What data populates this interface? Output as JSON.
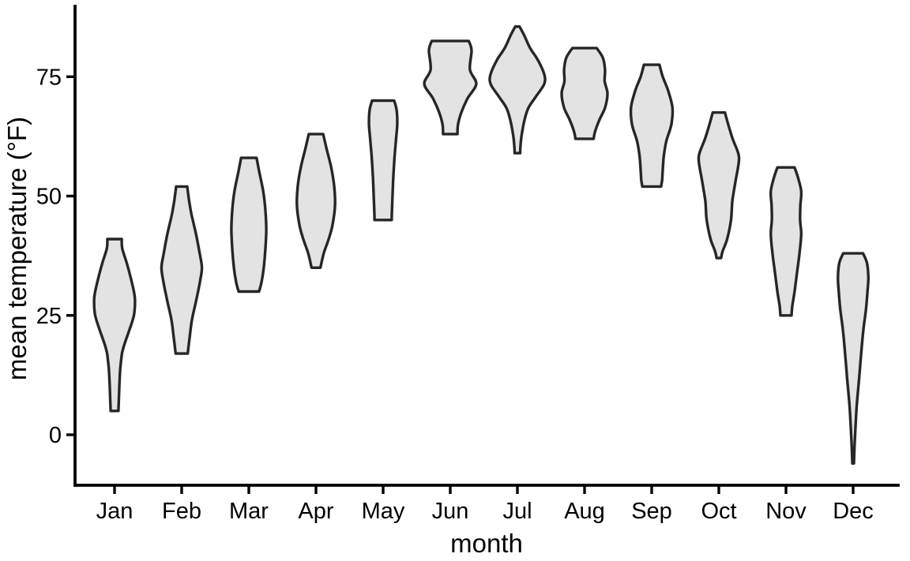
{
  "chart_data": {
    "type": "violin",
    "title": "",
    "xlabel": "month",
    "ylabel": "mean temperature (°F)",
    "categories": [
      "Jan",
      "Feb",
      "Mar",
      "Apr",
      "May",
      "Jun",
      "Jul",
      "Aug",
      "Sep",
      "Oct",
      "Nov",
      "Dec"
    ],
    "y_ticks": [
      0,
      25,
      50,
      75
    ],
    "ylim": [
      -10,
      88
    ],
    "grid": false,
    "legend": "none",
    "profile_format": "[temperature_F, relative_density_0_to_1]",
    "series": [
      {
        "month": "Jan",
        "min": 5,
        "max": 41,
        "profile": [
          [
            41,
            0.26
          ],
          [
            39,
            0.28
          ],
          [
            36,
            0.44
          ],
          [
            33,
            0.58
          ],
          [
            30,
            0.7
          ],
          [
            28,
            0.74
          ],
          [
            25,
            0.7
          ],
          [
            22,
            0.54
          ],
          [
            19,
            0.36
          ],
          [
            17,
            0.27
          ],
          [
            14,
            0.21
          ],
          [
            11,
            0.18
          ],
          [
            8,
            0.16
          ],
          [
            5,
            0.14
          ]
        ]
      },
      {
        "month": "Feb",
        "min": 17,
        "max": 52,
        "profile": [
          [
            52,
            0.2
          ],
          [
            49,
            0.27
          ],
          [
            46,
            0.36
          ],
          [
            42,
            0.52
          ],
          [
            38,
            0.65
          ],
          [
            35,
            0.73
          ],
          [
            32,
            0.66
          ],
          [
            28,
            0.52
          ],
          [
            24,
            0.37
          ],
          [
            20,
            0.28
          ],
          [
            17,
            0.22
          ]
        ]
      },
      {
        "month": "Mar",
        "min": 30,
        "max": 58,
        "profile": [
          [
            58,
            0.28
          ],
          [
            55,
            0.38
          ],
          [
            51,
            0.52
          ],
          [
            47,
            0.6
          ],
          [
            43,
            0.63
          ],
          [
            39,
            0.6
          ],
          [
            35,
            0.54
          ],
          [
            32,
            0.46
          ],
          [
            30,
            0.37
          ]
        ]
      },
      {
        "month": "Apr",
        "min": 35,
        "max": 63,
        "profile": [
          [
            63,
            0.26
          ],
          [
            60,
            0.38
          ],
          [
            56,
            0.55
          ],
          [
            52,
            0.66
          ],
          [
            48,
            0.69
          ],
          [
            44,
            0.6
          ],
          [
            41,
            0.46
          ],
          [
            38,
            0.28
          ],
          [
            35,
            0.16
          ]
        ]
      },
      {
        "month": "May",
        "min": 45,
        "max": 70,
        "profile": [
          [
            70,
            0.4
          ],
          [
            68,
            0.49
          ],
          [
            65,
            0.51
          ],
          [
            62,
            0.47
          ],
          [
            58,
            0.41
          ],
          [
            54,
            0.37
          ],
          [
            50,
            0.34
          ],
          [
            47,
            0.32
          ],
          [
            45,
            0.31
          ]
        ]
      },
      {
        "month": "Jun",
        "min": 63,
        "max": 82.5,
        "profile": [
          [
            82.5,
            0.67
          ],
          [
            80.5,
            0.77
          ],
          [
            76.5,
            0.71
          ],
          [
            73.5,
            0.94
          ],
          [
            70.5,
            0.63
          ],
          [
            67.5,
            0.4
          ],
          [
            65,
            0.28
          ],
          [
            63,
            0.26
          ]
        ]
      },
      {
        "month": "Jul",
        "min": 59,
        "max": 85.5,
        "profile": [
          [
            85.5,
            0.08
          ],
          [
            83.5,
            0.26
          ],
          [
            81,
            0.46
          ],
          [
            78.5,
            0.74
          ],
          [
            75.5,
            0.97
          ],
          [
            73.5,
            0.97
          ],
          [
            71,
            0.69
          ],
          [
            68.5,
            0.4
          ],
          [
            66,
            0.26
          ],
          [
            63,
            0.16
          ],
          [
            60.5,
            0.11
          ],
          [
            59,
            0.1
          ]
        ]
      },
      {
        "month": "Aug",
        "min": 62,
        "max": 81,
        "profile": [
          [
            81,
            0.44
          ],
          [
            79,
            0.66
          ],
          [
            76.5,
            0.74
          ],
          [
            74,
            0.73
          ],
          [
            71.5,
            0.83
          ],
          [
            68.5,
            0.74
          ],
          [
            66,
            0.54
          ],
          [
            63.5,
            0.38
          ],
          [
            62,
            0.33
          ]
        ]
      },
      {
        "month": "Sep",
        "min": 52,
        "max": 77.5,
        "profile": [
          [
            77.5,
            0.28
          ],
          [
            75,
            0.4
          ],
          [
            72,
            0.6
          ],
          [
            68.5,
            0.75
          ],
          [
            65,
            0.71
          ],
          [
            61.5,
            0.53
          ],
          [
            58.5,
            0.44
          ],
          [
            55.5,
            0.4
          ],
          [
            53.5,
            0.38
          ],
          [
            52,
            0.34
          ]
        ]
      },
      {
        "month": "Oct",
        "min": 37,
        "max": 67.5,
        "profile": [
          [
            67.5,
            0.22
          ],
          [
            65,
            0.34
          ],
          [
            62,
            0.5
          ],
          [
            59,
            0.7
          ],
          [
            57,
            0.72
          ],
          [
            53,
            0.6
          ],
          [
            49,
            0.49
          ],
          [
            45,
            0.44
          ],
          [
            41,
            0.3
          ],
          [
            38.5,
            0.14
          ],
          [
            37,
            0.08
          ]
        ]
      },
      {
        "month": "Nov",
        "min": 25,
        "max": 56,
        "profile": [
          [
            56,
            0.31
          ],
          [
            54,
            0.43
          ],
          [
            51,
            0.55
          ],
          [
            48,
            0.52
          ],
          [
            45,
            0.51
          ],
          [
            42,
            0.55
          ],
          [
            38,
            0.49
          ],
          [
            34,
            0.4
          ],
          [
            30,
            0.31
          ],
          [
            27,
            0.23
          ],
          [
            25,
            0.2
          ]
        ]
      },
      {
        "month": "Dec",
        "min": -6,
        "max": 38,
        "profile": [
          [
            38,
            0.36
          ],
          [
            36,
            0.5
          ],
          [
            33,
            0.55
          ],
          [
            30,
            0.52
          ],
          [
            26,
            0.46
          ],
          [
            22,
            0.37
          ],
          [
            17,
            0.29
          ],
          [
            12,
            0.22
          ],
          [
            6,
            0.13
          ],
          [
            0,
            0.07
          ],
          [
            -4,
            0.04
          ],
          [
            -6,
            0.03
          ]
        ]
      }
    ]
  },
  "colors": {
    "background": "#ffffff",
    "violin_fill": "#e3e3e3",
    "violin_stroke": "#262626",
    "axis": "#000000",
    "text": "#000000"
  }
}
